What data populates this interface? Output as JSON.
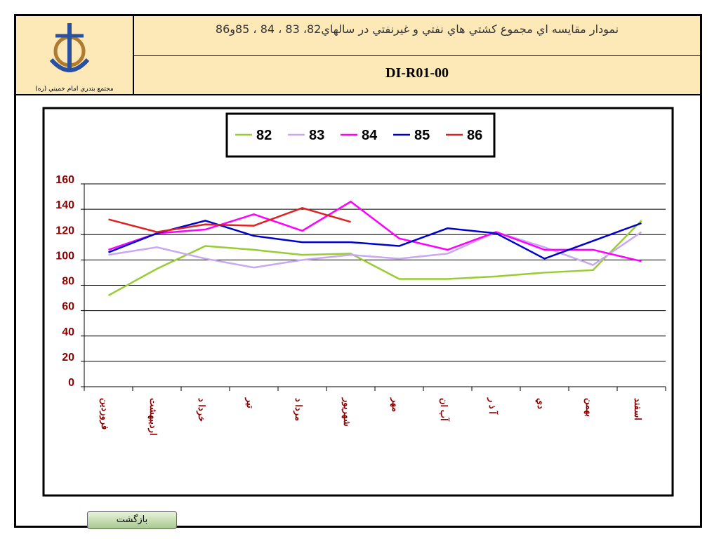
{
  "header": {
    "title": "نمودار مقايسه اي مجموع كشتي هاي نفتي و غيرنفتي در سالهاي82، 83 ، 84 ، 85و86",
    "code": "DI-R01-00",
    "logo_caption": "مجتمع بندري امام خميني (ره)"
  },
  "chart_data": {
    "type": "line",
    "categories": [
      "فروردين",
      "ارديبهشت",
      "خردا د",
      "تير",
      "مردا د",
      "شهريور",
      "مهر",
      "آب ان",
      "آ ذ ر",
      "دي",
      "بهمن",
      "اسفند"
    ],
    "series": [
      {
        "name": "82",
        "color": "#99cc33",
        "values": [
          72,
          93,
          111,
          108,
          104,
          105,
          85,
          85,
          87,
          90,
          92,
          131
        ]
      },
      {
        "name": "83",
        "color": "#c8a8f0",
        "values": [
          104,
          110,
          101,
          94,
          100,
          104,
          101,
          105,
          122,
          110,
          96,
          122
        ]
      },
      {
        "name": "84",
        "color": "#ff00ff",
        "values": [
          108,
          121,
          124,
          136,
          123,
          146,
          117,
          108,
          122,
          108,
          108,
          99
        ]
      },
      {
        "name": "85",
        "color": "#0000cc",
        "values": [
          106,
          121,
          131,
          119,
          114,
          114,
          111,
          125,
          121,
          101,
          115,
          129
        ]
      },
      {
        "name": "86",
        "color": "#dd2222",
        "values": [
          132,
          122,
          128,
          127,
          141,
          130,
          null,
          null,
          null,
          null,
          null,
          null
        ]
      }
    ],
    "ylim": [
      0,
      160
    ],
    "yticks": [
      0,
      20,
      40,
      60,
      80,
      100,
      120,
      140,
      160
    ],
    "grid": true,
    "legend": "top"
  },
  "button": {
    "label": "بازگشت"
  }
}
